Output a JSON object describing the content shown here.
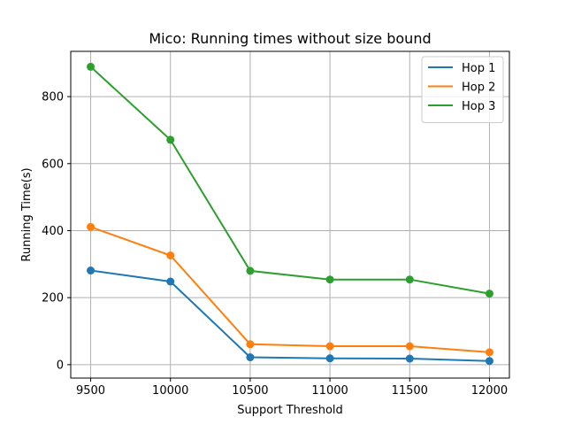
{
  "chart_data": {
    "type": "line",
    "title": "Mico: Running times without size bound",
    "xlabel": "Support Threshold",
    "ylabel": "Running Time(s)",
    "x": [
      9500,
      10000,
      10500,
      11000,
      11500,
      12000
    ],
    "xticks": [
      9500,
      10000,
      10500,
      11000,
      11500,
      12000
    ],
    "yticks": [
      0,
      200,
      400,
      600,
      800
    ],
    "xlim": [
      9375,
      12125
    ],
    "ylim": [
      -40,
      935
    ],
    "grid": true,
    "legend_position": "top-right",
    "series": [
      {
        "name": "Hop 1",
        "color": "#1f77b4",
        "values": [
          281,
          248,
          22,
          19,
          18,
          11
        ]
      },
      {
        "name": "Hop 2",
        "color": "#ff7f0e",
        "values": [
          411,
          326,
          61,
          55,
          55,
          37
        ]
      },
      {
        "name": "Hop 3",
        "color": "#2ca02c",
        "values": [
          889,
          671,
          280,
          254,
          254,
          212
        ]
      }
    ]
  }
}
